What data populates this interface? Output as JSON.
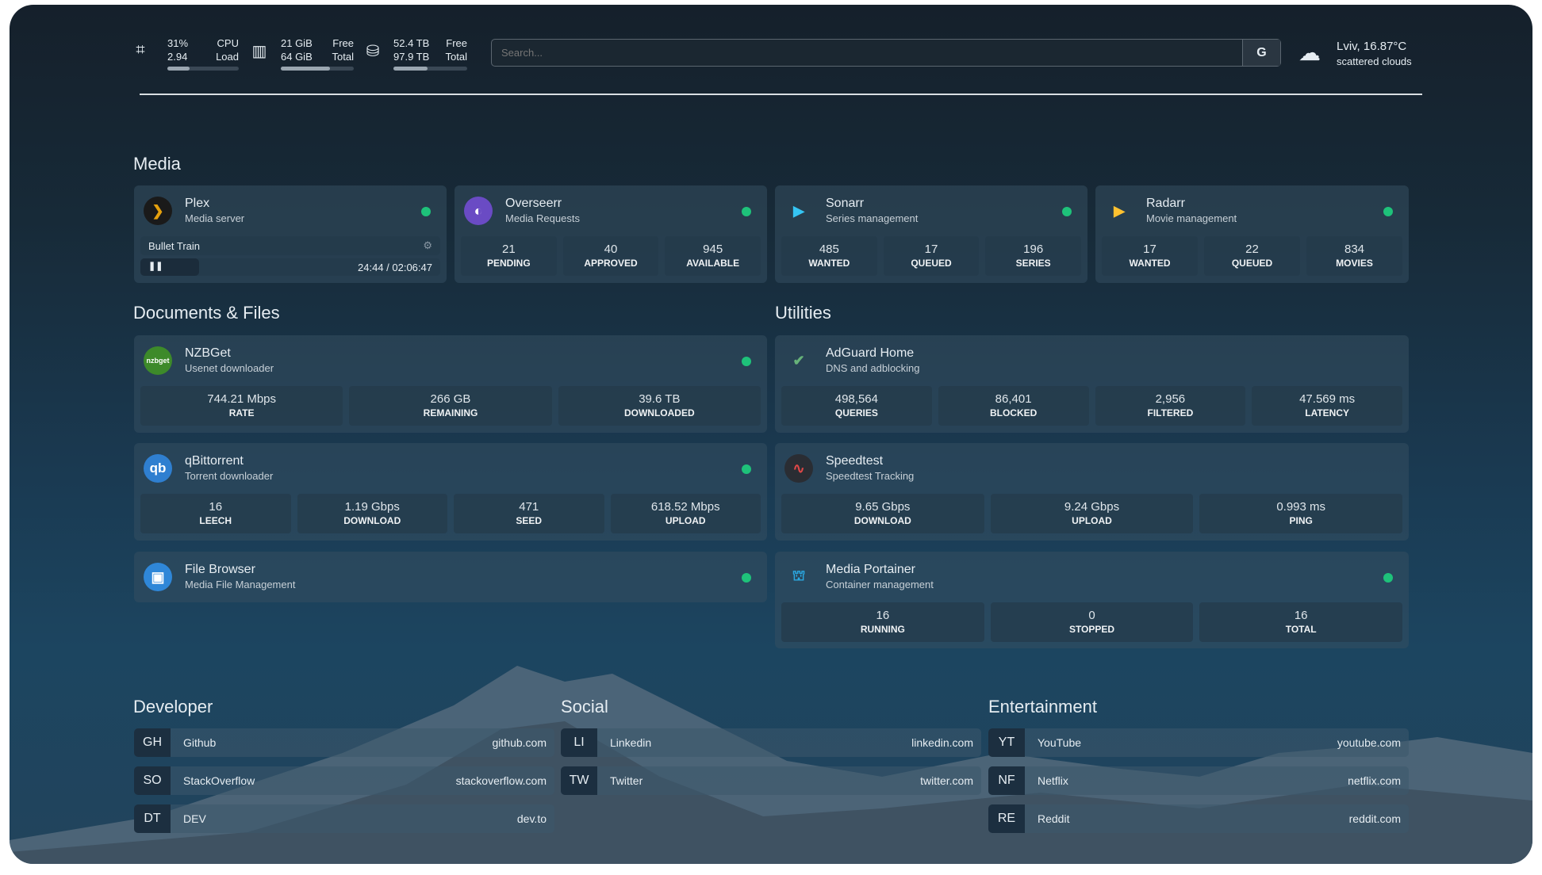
{
  "topbar": {
    "cpu": {
      "icon": "cpu-icon",
      "v1": "31%",
      "v2": "2.94",
      "l1": "CPU",
      "l2": "Load",
      "percent": 31
    },
    "memory": {
      "icon": "memory-icon",
      "v1": "21 GiB",
      "v2": "64 GiB",
      "l1": "Free",
      "l2": "Total",
      "percent": 67
    },
    "disk": {
      "icon": "disk-icon",
      "v1": "52.4 TB",
      "v2": "97.9 TB",
      "l1": "Free",
      "l2": "Total",
      "percent": 46
    },
    "search": {
      "placeholder": "Search...",
      "button": "G"
    },
    "weather": {
      "icon": "cloud-icon",
      "line1": "Lviv, 16.87°C",
      "line2": "scattered clouds"
    }
  },
  "sections": {
    "media": "Media",
    "docs": "Documents & Files",
    "utilities": "Utilities",
    "developer": "Developer",
    "social": "Social",
    "entertainment": "Entertainment"
  },
  "cards": [
    {
      "id": "plex",
      "title": "Plex",
      "subtitle": "Media server",
      "icon": "plex-icon",
      "status": "online",
      "now_playing": {
        "title": "Bullet Train",
        "time": "24:44 / 02:06:47",
        "progress": 0.195
      }
    },
    {
      "id": "overseerr",
      "title": "Overseerr",
      "subtitle": "Media Requests",
      "icon": "overseerr-icon",
      "status": "online",
      "stats": [
        {
          "v": "21",
          "k": "PENDING"
        },
        {
          "v": "40",
          "k": "APPROVED"
        },
        {
          "v": "945",
          "k": "AVAILABLE"
        }
      ]
    },
    {
      "id": "sonarr",
      "title": "Sonarr",
      "subtitle": "Series management",
      "icon": "sonarr-icon",
      "status": "online",
      "stats": [
        {
          "v": "485",
          "k": "WANTED"
        },
        {
          "v": "17",
          "k": "QUEUED"
        },
        {
          "v": "196",
          "k": "SERIES"
        }
      ]
    },
    {
      "id": "radarr",
      "title": "Radarr",
      "subtitle": "Movie management",
      "icon": "radarr-icon",
      "status": "online",
      "stats": [
        {
          "v": "17",
          "k": "WANTED"
        },
        {
          "v": "22",
          "k": "QUEUED"
        },
        {
          "v": "834",
          "k": "MOVIES"
        }
      ]
    },
    {
      "id": "nzbget",
      "title": "NZBGet",
      "subtitle": "Usenet downloader",
      "icon": "nzbget-icon",
      "logo_text": "nzbget",
      "status": "online",
      "stats": [
        {
          "v": "744.21 Mbps",
          "k": "RATE"
        },
        {
          "v": "266 GB",
          "k": "REMAINING"
        },
        {
          "v": "39.6 TB",
          "k": "DOWNLOADED"
        }
      ]
    },
    {
      "id": "qbittorrent",
      "title": "qBittorrent",
      "subtitle": "Torrent downloader",
      "icon": "qbittorrent-icon",
      "logo_text": "qb",
      "status": "online",
      "stats": [
        {
          "v": "16",
          "k": "LEECH"
        },
        {
          "v": "1.19 Gbps",
          "k": "DOWNLOAD"
        },
        {
          "v": "471",
          "k": "SEED"
        },
        {
          "v": "618.52 Mbps",
          "k": "UPLOAD"
        }
      ]
    },
    {
      "id": "filebrowser",
      "title": "File Browser",
      "subtitle": "Media File Management",
      "icon": "file-browser-icon",
      "status": "online"
    },
    {
      "id": "adguard",
      "title": "AdGuard Home",
      "subtitle": "DNS and adblocking",
      "icon": "adguard-shield-icon",
      "stats": [
        {
          "v": "498,564",
          "k": "QUERIES"
        },
        {
          "v": "86,401",
          "k": "BLOCKED"
        },
        {
          "v": "2,956",
          "k": "FILTERED"
        },
        {
          "v": "47.569 ms",
          "k": "LATENCY"
        }
      ]
    },
    {
      "id": "speedtest",
      "title": "Speedtest",
      "subtitle": "Speedtest Tracking",
      "icon": "speedtest-icon",
      "stats": [
        {
          "v": "9.65 Gbps",
          "k": "DOWNLOAD"
        },
        {
          "v": "9.24 Gbps",
          "k": "UPLOAD"
        },
        {
          "v": "0.993 ms",
          "k": "PING"
        }
      ]
    },
    {
      "id": "portainer",
      "title": "Media Portainer",
      "subtitle": "Container management",
      "icon": "portainer-icon",
      "status": "online",
      "stats": [
        {
          "v": "16",
          "k": "RUNNING"
        },
        {
          "v": "0",
          "k": "STOPPED"
        },
        {
          "v": "16",
          "k": "TOTAL"
        }
      ]
    }
  ],
  "links": {
    "developer": [
      {
        "abbr": "GH",
        "name": "Github",
        "url": "github.com"
      },
      {
        "abbr": "SO",
        "name": "StackOverflow",
        "url": "stackoverflow.com"
      },
      {
        "abbr": "DT",
        "name": "DEV",
        "url": "dev.to"
      }
    ],
    "social": [
      {
        "abbr": "LI",
        "name": "Linkedin",
        "url": "linkedin.com"
      },
      {
        "abbr": "TW",
        "name": "Twitter",
        "url": "twitter.com"
      }
    ],
    "entertainment": [
      {
        "abbr": "YT",
        "name": "YouTube",
        "url": "youtube.com"
      },
      {
        "abbr": "NF",
        "name": "Netflix",
        "url": "netflix.com"
      },
      {
        "abbr": "RE",
        "name": "Reddit",
        "url": "reddit.com"
      }
    ]
  },
  "colors": {
    "status_online": "#1ec27a",
    "background": "#172a38"
  }
}
